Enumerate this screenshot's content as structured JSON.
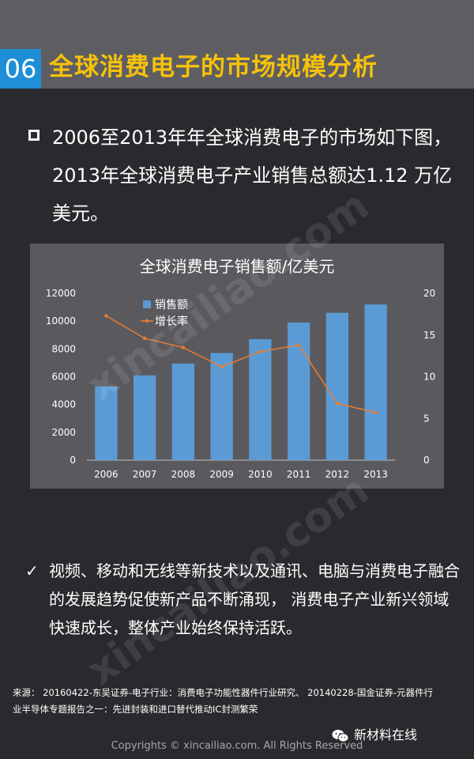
{
  "header": {
    "number": "06",
    "title": "全球消费电子的市场规模分析"
  },
  "intro": {
    "text": "2006至2013年年全球消费电子的市场如下图，2013年全球消费电子产业销售总额达1.12 万亿美元。"
  },
  "chart_data": {
    "type": "bar",
    "title": "全球消费电子销售额/亿美元",
    "categories": [
      "2006",
      "2007",
      "2008",
      "2009",
      "2010",
      "2011",
      "2012",
      "2013"
    ],
    "series": [
      {
        "name": "销售额",
        "type": "bar",
        "axis": "left",
        "color": "#5b9bd5",
        "values": [
          5300,
          6100,
          6950,
          7700,
          8700,
          9900,
          10600,
          11200
        ]
      },
      {
        "name": "增长率",
        "type": "line",
        "axis": "right",
        "color": "#ed7d31",
        "values": [
          17.3,
          14.6,
          13.5,
          11.2,
          13.0,
          13.8,
          6.8,
          5.7
        ]
      }
    ],
    "ylim": [
      0,
      12000
    ],
    "yticks": [
      "0",
      "2000",
      "4000",
      "6000",
      "8000",
      "10000",
      "12000"
    ],
    "y2lim": [
      0,
      20
    ],
    "y2ticks": [
      "0",
      "5",
      "10",
      "15",
      "20"
    ],
    "legend": "top-left"
  },
  "desc": {
    "text": "视频、移动和无线等新技术以及通讯、电脑与消费电子融合的发展趋势促使新产品不断涌现， 消费电子产业新兴领域快速成长，整体产业始终保持活跃。"
  },
  "source": {
    "text": "来源： 20160422-东吴证券-电子行业：消费电子功能性器件行业研究、 20140228-国金证券-元器件行业半导体专题报告之一：先进封装和进口替代推动IC封测繁荣"
  },
  "wechat": {
    "label": "新材料在线"
  },
  "footer": {
    "copyright": "Copyrights © xincailiao.com. All Rights Reserved"
  },
  "watermark": {
    "text": "xincailiao.com"
  },
  "colors": {
    "header_bg": "#5e5e62",
    "accent_blue": "#1e8fd6",
    "title_yellow": "#f6c20a",
    "page_bg": "#2a2a2e"
  }
}
